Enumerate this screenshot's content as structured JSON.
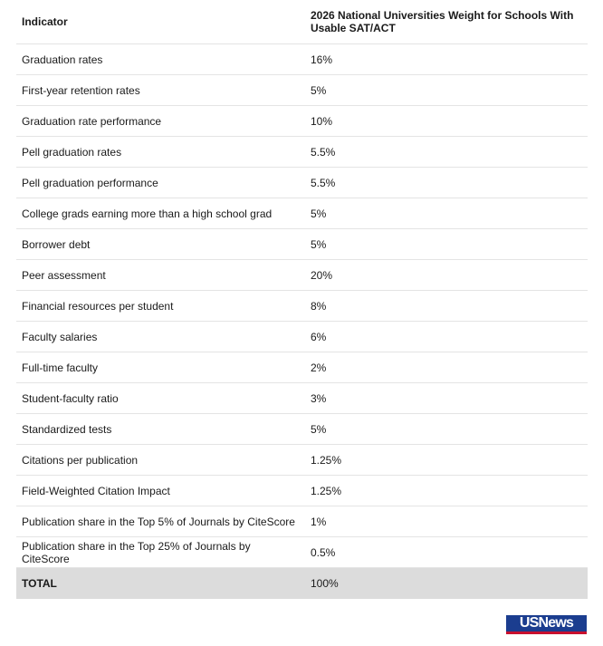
{
  "table": {
    "headers": {
      "indicator": "Indicator",
      "weight": "2026 National Universities Weight for Schools With Usable SAT/ACT"
    },
    "rows": [
      {
        "indicator": "Graduation rates",
        "weight": "16%"
      },
      {
        "indicator": "First-year retention rates",
        "weight": "5%"
      },
      {
        "indicator": "Graduation rate performance",
        "weight": "10%"
      },
      {
        "indicator": "Pell graduation rates",
        "weight": "5.5%"
      },
      {
        "indicator": "Pell graduation performance",
        "weight": "5.5%"
      },
      {
        "indicator": "College grads earning more than a high school grad",
        "weight": "5%"
      },
      {
        "indicator": "Borrower debt",
        "weight": "5%"
      },
      {
        "indicator": "Peer assessment",
        "weight": "20%"
      },
      {
        "indicator": "Financial resources per student",
        "weight": "8%"
      },
      {
        "indicator": "Faculty salaries",
        "weight": "6%"
      },
      {
        "indicator": "Full-time faculty",
        "weight": "2%"
      },
      {
        "indicator": "Student-faculty ratio",
        "weight": "3%"
      },
      {
        "indicator": "Standardized tests",
        "weight": "5%"
      },
      {
        "indicator": "Citations per publication",
        "weight": "1.25%"
      },
      {
        "indicator": "Field-Weighted Citation Impact",
        "weight": "1.25%"
      },
      {
        "indicator": "Publication share in the Top 5% of Journals by CiteScore",
        "weight": "1%"
      },
      {
        "indicator": "Publication share in the Top 25% of Journals by CiteScore",
        "weight": "0.5%"
      }
    ],
    "total": {
      "indicator": "TOTAL",
      "weight": "100%"
    }
  },
  "logo": {
    "text": "USNews"
  },
  "colors": {
    "total_row_bg": "#dcdcdc",
    "row_divider": "#e4e4e4",
    "logo_blue": "#1b3d8f"
  }
}
